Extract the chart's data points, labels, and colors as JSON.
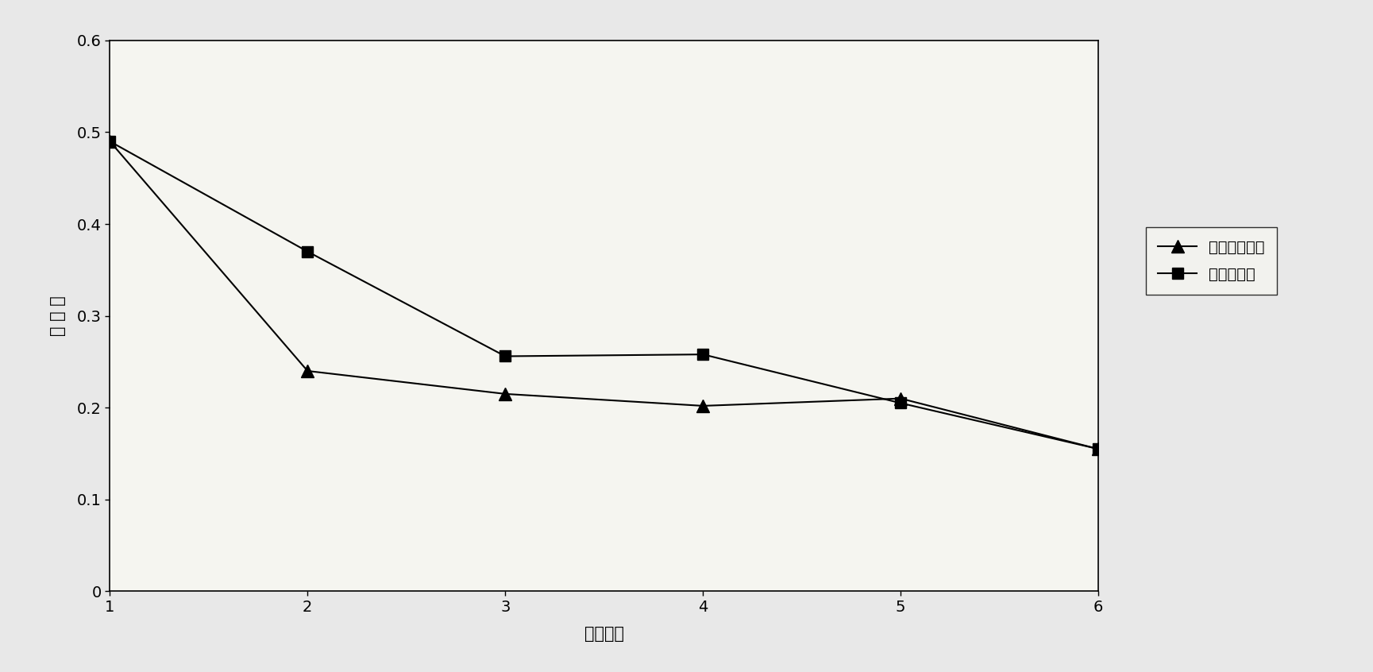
{
  "x": [
    1,
    2,
    3,
    4,
    5,
    6
  ],
  "y_homoharringtonine": [
    0.49,
    0.24,
    0.215,
    0.202,
    0.21,
    0.155
  ],
  "y_harringtonine": [
    0.49,
    0.37,
    0.256,
    0.258,
    0.205,
    0.155
  ],
  "xlabel": "药物浓度",
  "ylabel": "吸 光 値",
  "legend_homoharringtonine": "高三尖杉酸碱",
  "legend_harringtonine": "三尖杉酸碱",
  "xlim": [
    1,
    6
  ],
  "ylim": [
    0,
    0.6
  ],
  "ytick_values": [
    0,
    0.1,
    0.2,
    0.3,
    0.4,
    0.5,
    0.6
  ],
  "ytick_labels": [
    "0",
    "0.1",
    "0.2",
    "0.3",
    "0.4",
    "0.5",
    "0.6"
  ],
  "xticks": [
    1,
    2,
    3,
    4,
    5,
    6
  ],
  "line_color": "#000000",
  "bg_color": "#e8e8e8",
  "plot_bg_color": "#f5f5f0"
}
